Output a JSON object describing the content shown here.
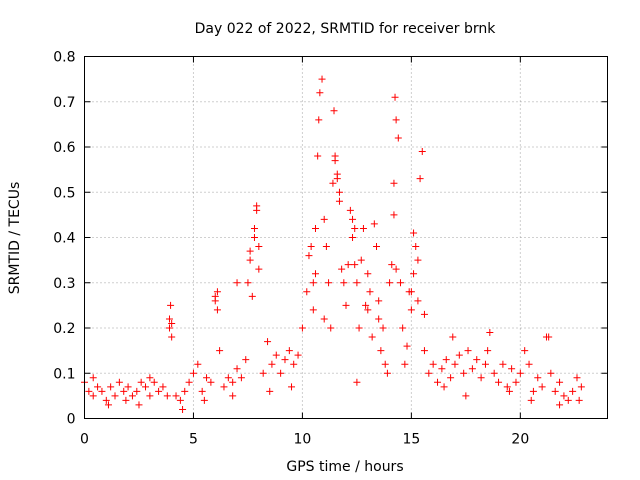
{
  "chart_data": {
    "type": "scatter",
    "title": "Day 022 of 2022, SRMTID for receiver brnk",
    "xlabel": "GPS time / hours",
    "ylabel": "SRMTID / TECUs",
    "xlim": [
      0,
      24
    ],
    "ylim": [
      0,
      0.8
    ],
    "xticks": [
      0,
      5,
      10,
      15,
      20
    ],
    "xtick_labels": [
      "0",
      "5",
      "10",
      "15",
      "20"
    ],
    "yticks": [
      0,
      0.1,
      0.2,
      0.3,
      0.4,
      0.5,
      0.6,
      0.7,
      0.8
    ],
    "ytick_labels": [
      "0",
      "0.1",
      "0.2",
      "0.3",
      "0.4",
      "0.5",
      "0.6",
      "0.7",
      "0.8"
    ],
    "grid": true,
    "marker": "+",
    "color": "#ff0000",
    "series": [
      {
        "name": "SRMTID",
        "x": [
          0.0,
          0.2,
          0.4,
          0.6,
          0.8,
          1.0,
          1.2,
          1.4,
          1.6,
          1.8,
          2.0,
          2.2,
          2.4,
          2.6,
          2.8,
          3.0,
          3.2,
          3.4,
          3.6,
          3.8,
          3.9,
          3.95,
          4.0,
          4.2,
          4.4,
          4.6,
          4.8,
          5.0,
          5.2,
          5.4,
          5.6,
          5.8,
          6.0,
          6.1,
          6.2,
          6.4,
          6.6,
          6.8,
          7.0,
          7.2,
          7.4,
          7.5,
          7.6,
          7.7,
          7.8,
          7.9,
          8.0,
          8.2,
          8.4,
          8.6,
          8.8,
          9.0,
          9.2,
          9.4,
          9.6,
          9.8,
          10.0,
          10.2,
          10.3,
          10.4,
          10.5,
          10.6,
          10.7,
          10.75,
          10.8,
          10.9,
          11.0,
          11.1,
          11.2,
          11.3,
          11.4,
          11.45,
          11.5,
          11.6,
          11.7,
          11.8,
          11.9,
          12.0,
          12.1,
          12.2,
          12.3,
          12.4,
          12.5,
          12.6,
          12.7,
          12.8,
          12.9,
          13.0,
          13.1,
          13.2,
          13.3,
          13.4,
          13.5,
          13.6,
          13.7,
          13.8,
          13.9,
          14.0,
          14.1,
          14.2,
          14.25,
          14.3,
          14.4,
          14.5,
          14.6,
          14.7,
          14.8,
          14.9,
          15.0,
          15.1,
          15.2,
          15.3,
          15.4,
          15.5,
          15.6,
          15.8,
          16.0,
          16.2,
          16.4,
          16.6,
          16.8,
          17.0,
          17.2,
          17.4,
          17.6,
          17.8,
          18.0,
          18.2,
          18.4,
          18.6,
          18.8,
          19.0,
          19.2,
          19.4,
          19.6,
          19.8,
          20.0,
          20.2,
          20.4,
          20.6,
          20.8,
          21.0,
          21.2,
          21.4,
          21.6,
          21.8,
          22.0,
          22.2,
          22.4,
          22.6,
          22.8,
          4.0,
          3.9,
          6.0,
          6.1,
          7.0,
          7.6,
          7.8,
          7.9,
          8.0,
          10.5,
          10.6,
          11.0,
          11.5,
          11.6,
          11.7,
          12.3,
          12.4,
          13.0,
          13.5,
          14.2,
          14.3,
          15.0,
          15.1,
          15.3,
          15.6,
          16.9,
          18.5,
          21.3,
          0.4,
          1.1,
          1.9,
          2.5,
          3.0,
          4.5,
          5.5,
          6.8,
          8.5,
          9.5,
          12.5,
          16.5,
          17.5,
          19.5,
          20.5,
          21.8,
          22.7
        ],
        "y": [
          0.08,
          0.06,
          0.05,
          0.07,
          0.06,
          0.04,
          0.07,
          0.05,
          0.08,
          0.06,
          0.07,
          0.05,
          0.06,
          0.08,
          0.07,
          0.09,
          0.08,
          0.06,
          0.07,
          0.05,
          0.2,
          0.25,
          0.18,
          0.05,
          0.04,
          0.06,
          0.08,
          0.1,
          0.12,
          0.06,
          0.09,
          0.08,
          0.27,
          0.28,
          0.15,
          0.07,
          0.09,
          0.08,
          0.11,
          0.09,
          0.13,
          0.3,
          0.35,
          0.27,
          0.4,
          0.47,
          0.33,
          0.1,
          0.17,
          0.12,
          0.14,
          0.1,
          0.13,
          0.15,
          0.12,
          0.14,
          0.2,
          0.28,
          0.36,
          0.38,
          0.3,
          0.42,
          0.58,
          0.66,
          0.72,
          0.75,
          0.44,
          0.38,
          0.3,
          0.2,
          0.52,
          0.68,
          0.58,
          0.54,
          0.5,
          0.33,
          0.3,
          0.25,
          0.34,
          0.46,
          0.44,
          0.42,
          0.3,
          0.2,
          0.35,
          0.42,
          0.25,
          0.32,
          0.28,
          0.18,
          0.43,
          0.38,
          0.22,
          0.15,
          0.2,
          0.12,
          0.1,
          0.3,
          0.34,
          0.52,
          0.71,
          0.66,
          0.62,
          0.3,
          0.2,
          0.12,
          0.16,
          0.28,
          0.24,
          0.32,
          0.38,
          0.35,
          0.53,
          0.59,
          0.15,
          0.1,
          0.12,
          0.08,
          0.11,
          0.13,
          0.09,
          0.12,
          0.14,
          0.1,
          0.15,
          0.11,
          0.13,
          0.09,
          0.12,
          0.19,
          0.1,
          0.08,
          0.12,
          0.07,
          0.11,
          0.08,
          0.1,
          0.15,
          0.12,
          0.06,
          0.09,
          0.07,
          0.18,
          0.1,
          0.06,
          0.08,
          0.05,
          0.04,
          0.06,
          0.09,
          0.07,
          0.21,
          0.22,
          0.26,
          0.24,
          0.3,
          0.37,
          0.42,
          0.46,
          0.38,
          0.24,
          0.32,
          0.22,
          0.57,
          0.53,
          0.48,
          0.4,
          0.34,
          0.24,
          0.26,
          0.45,
          0.33,
          0.28,
          0.41,
          0.26,
          0.23,
          0.18,
          0.15,
          0.18,
          0.09,
          0.03,
          0.04,
          0.03,
          0.05,
          0.02,
          0.04,
          0.05,
          0.06,
          0.07,
          0.08,
          0.07,
          0.05,
          0.06,
          0.04,
          0.03,
          0.04
        ]
      }
    ]
  }
}
